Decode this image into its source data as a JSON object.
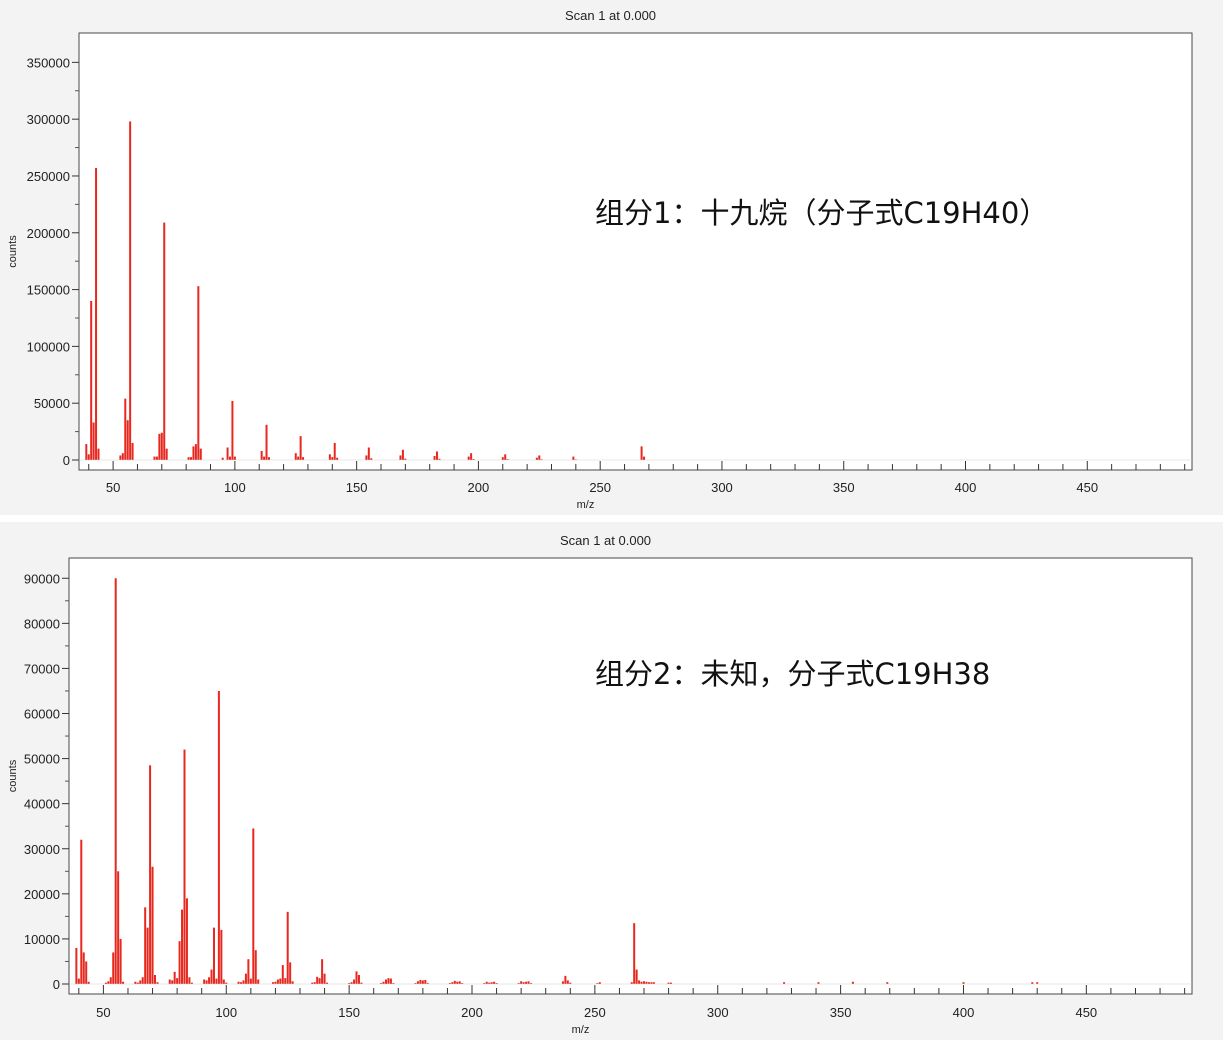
{
  "chart_data": [
    {
      "type": "bar",
      "title": "Scan 1 at 0.000",
      "xlabel": "m/z",
      "ylabel": "counts",
      "xlim": [
        36,
        493
      ],
      "ylim": [
        0,
        360000
      ],
      "x_ticks": [
        50,
        100,
        150,
        200,
        250,
        300,
        350,
        400,
        450
      ],
      "y_ticks": [
        0,
        50000,
        100000,
        150000,
        200000,
        250000,
        300000,
        350000
      ],
      "annotation": "组分1：十九烷（分子式C19H40）",
      "grid": false,
      "bar_color": "#e8281e",
      "series": [
        {
          "x": [
            39,
            40,
            41,
            42,
            43,
            44,
            53,
            54,
            55,
            56,
            57,
            58,
            67,
            68,
            69,
            70,
            71,
            72,
            81,
            82,
            83,
            84,
            85,
            86,
            95,
            97,
            98,
            99,
            100,
            111,
            112,
            113,
            114,
            125,
            126,
            127,
            128,
            139,
            140,
            141,
            142,
            154,
            155,
            156,
            168,
            169,
            170,
            182,
            183,
            184,
            196,
            197,
            198,
            210,
            211,
            212,
            224,
            225,
            226,
            239,
            240,
            267,
            268
          ],
          "y": [
            14000,
            5000,
            140000,
            33000,
            257000,
            10000,
            4000,
            6000,
            54000,
            35000,
            298000,
            15000,
            3000,
            3000,
            23000,
            24000,
            209000,
            10000,
            2500,
            2500,
            12000,
            14000,
            153000,
            10000,
            2000,
            11000,
            3000,
            52000,
            3000,
            8000,
            3000,
            31000,
            2500,
            6000,
            3000,
            21000,
            2500,
            5000,
            2500,
            15000,
            2000,
            4000,
            11000,
            1500,
            4000,
            9000,
            1200,
            3500,
            7500,
            1000,
            3000,
            6000,
            800,
            2500,
            5000,
            700,
            2000,
            4000,
            600,
            3000,
            500,
            12000,
            3000
          ]
        }
      ]
    },
    {
      "type": "bar",
      "title": "Scan 1 at 0.000",
      "xlabel": "m/z",
      "ylabel": "counts",
      "xlim": [
        36,
        493
      ],
      "ylim": [
        0,
        90500
      ],
      "x_ticks": [
        50,
        100,
        150,
        200,
        250,
        300,
        350,
        400,
        450
      ],
      "y_ticks": [
        0,
        10000,
        20000,
        30000,
        40000,
        50000,
        60000,
        70000,
        80000,
        90000
      ],
      "annotation": "组分2：未知，分子式C19H38",
      "grid": false,
      "bar_color": "#e8281e",
      "series": [
        {
          "x": [
            39,
            40,
            41,
            42,
            43,
            44,
            51,
            52,
            53,
            54,
            55,
            56,
            57,
            58,
            63,
            64,
            65,
            66,
            67,
            68,
            69,
            70,
            71,
            72,
            77,
            78,
            79,
            80,
            81,
            82,
            83,
            84,
            85,
            86,
            91,
            92,
            93,
            94,
            95,
            96,
            97,
            98,
            99,
            100,
            105,
            106,
            107,
            108,
            109,
            110,
            111,
            112,
            113,
            119,
            120,
            121,
            122,
            123,
            124,
            125,
            126,
            127,
            135,
            136,
            137,
            138,
            139,
            140,
            141,
            150,
            151,
            152,
            153,
            154,
            155,
            163,
            164,
            165,
            166,
            167,
            168,
            177,
            178,
            179,
            180,
            181,
            182,
            191,
            192,
            193,
            194,
            195,
            196,
            205,
            206,
            207,
            208,
            209,
            210,
            219,
            220,
            221,
            222,
            223,
            224,
            237,
            238,
            239,
            240,
            251,
            252,
            265,
            266,
            267,
            268,
            269,
            270,
            271,
            272,
            273,
            274,
            280,
            281,
            327,
            341,
            355,
            369,
            400,
            428,
            430
          ],
          "y": [
            8000,
            1200,
            32000,
            7000,
            5000,
            500,
            300,
            600,
            1500,
            7000,
            90000,
            25000,
            10000,
            500,
            500,
            300,
            800,
            1500,
            17000,
            12500,
            48500,
            26000,
            2000,
            400,
            1000,
            800,
            2700,
            1300,
            9500,
            16500,
            52000,
            19000,
            1500,
            300,
            1000,
            800,
            1500,
            3200,
            12500,
            1200,
            65000,
            12000,
            1000,
            300,
            500,
            400,
            800,
            2300,
            5500,
            1200,
            34500,
            7500,
            1000,
            400,
            500,
            1000,
            1200,
            4200,
            1300,
            16000,
            4800,
            600,
            300,
            400,
            1600,
            1300,
            5500,
            2300,
            300,
            200,
            400,
            1000,
            2800,
            2000,
            300,
            200,
            500,
            1000,
            1300,
            1200,
            200,
            200,
            600,
            900,
            800,
            900,
            200,
            200,
            400,
            700,
            500,
            600,
            200,
            200,
            500,
            300,
            400,
            500,
            200,
            200,
            600,
            400,
            500,
            600,
            200,
            600,
            1800,
            800,
            300,
            200,
            400,
            400,
            13500,
            3200,
            800,
            500,
            600,
            500,
            400,
            400,
            400,
            300,
            300,
            400,
            400,
            500,
            400,
            400,
            400,
            400
          ]
        }
      ]
    }
  ]
}
